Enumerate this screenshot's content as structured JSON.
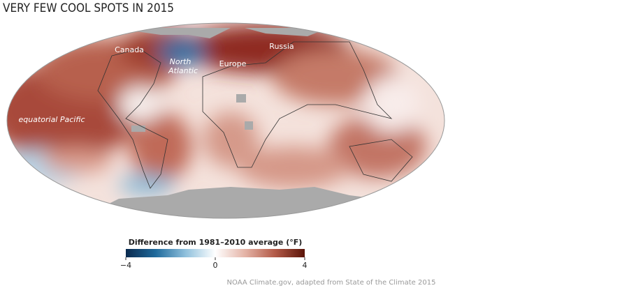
{
  "title": "VERY FEW COOL SPOTS IN 2015",
  "map_labels": [
    {
      "text": "Canada",
      "italic": false
    },
    {
      "lines": [
        "North",
        "Atlantic"
      ],
      "italic": true
    },
    {
      "text": "Europe",
      "italic": false
    },
    {
      "text": "Russia",
      "italic": false
    },
    {
      "text": "equatorial Pacific",
      "italic": true
    }
  ],
  "legend": {
    "title": "Difference from 1981–2010 average (°F)",
    "lim": [
      -4,
      4
    ],
    "colors": [
      "#0a2a4e",
      "#1f6a9c",
      "#8fc0dc",
      "#ffffff",
      "#e4b3a6",
      "#b35a48",
      "#5a1408"
    ],
    "ticks": [
      {
        "value": -4,
        "label": "−4"
      },
      0,
      4
    ]
  },
  "credit": "NOAA Climate.gov, adapted from State of the Climate 2015"
}
